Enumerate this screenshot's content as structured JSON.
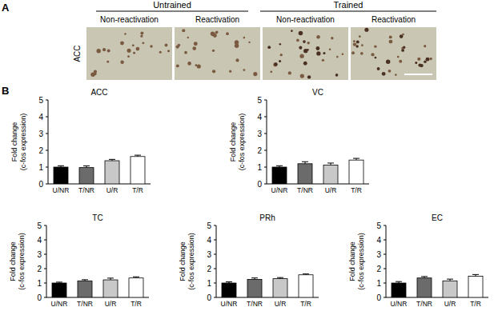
{
  "figure": {
    "panel_labels": [
      "A",
      "B"
    ],
    "groups": [
      "Untrained",
      "Trained"
    ],
    "conditions": [
      "Non-reactivation",
      "Reactivation",
      "Non-reactivation",
      "Reactivation"
    ],
    "row_label": "ACC"
  },
  "chart_data": [
    {
      "type": "bar",
      "title": "ACC",
      "y_label": "Fold change\n(c-fos expression)",
      "categories": [
        "U/NR",
        "T/NR",
        "U/R",
        "T/R"
      ],
      "values": [
        1.0,
        0.97,
        1.38,
        1.63
      ],
      "errors": [
        0.08,
        0.1,
        0.08,
        0.08
      ],
      "colors": [
        "#000000",
        "#6b6b6b",
        "#c8c8c8",
        "#ffffff"
      ],
      "ylim": [
        0,
        5
      ],
      "yticks": [
        0,
        1,
        2,
        3,
        4,
        5
      ]
    },
    {
      "type": "bar",
      "title": "VC",
      "y_label": "Fold change\n(c-fos expression)",
      "categories": [
        "U/NR",
        "T/NR",
        "U/R",
        "T/R"
      ],
      "values": [
        1.0,
        1.2,
        1.12,
        1.42
      ],
      "errors": [
        0.08,
        0.12,
        0.12,
        0.1
      ],
      "colors": [
        "#000000",
        "#6b6b6b",
        "#c8c8c8",
        "#ffffff"
      ],
      "ylim": [
        0,
        5
      ],
      "yticks": [
        0,
        1,
        2,
        3,
        4,
        5
      ]
    },
    {
      "type": "bar",
      "title": "TC",
      "y_label": "Fold change\n(c-fos expression)",
      "categories": [
        "U/NR",
        "T/NR",
        "U/R",
        "T/R"
      ],
      "values": [
        1.0,
        1.15,
        1.22,
        1.35
      ],
      "errors": [
        0.06,
        0.08,
        0.12,
        0.08
      ],
      "colors": [
        "#000000",
        "#6b6b6b",
        "#c8c8c8",
        "#ffffff"
      ],
      "ylim": [
        0,
        5
      ],
      "yticks": [
        0,
        1,
        2,
        3,
        4,
        5
      ]
    },
    {
      "type": "bar",
      "title": "PRh",
      "y_label": "Fold change\n(c-fos expression)",
      "categories": [
        "U/NR",
        "T/NR",
        "U/R",
        "T/R"
      ],
      "values": [
        1.0,
        1.25,
        1.3,
        1.57
      ],
      "errors": [
        0.08,
        0.1,
        0.08,
        0.06
      ],
      "colors": [
        "#000000",
        "#6b6b6b",
        "#c8c8c8",
        "#ffffff"
      ],
      "ylim": [
        0,
        5
      ],
      "yticks": [
        0,
        1,
        2,
        3,
        4,
        5
      ]
    },
    {
      "type": "bar",
      "title": "EC",
      "y_label": "Fold change\n(c-fos expression)",
      "categories": [
        "U/NR",
        "T/NR",
        "U/R",
        "T/R"
      ],
      "values": [
        1.0,
        1.35,
        1.15,
        1.47
      ],
      "errors": [
        0.1,
        0.1,
        0.12,
        0.12
      ],
      "colors": [
        "#000000",
        "#6b6b6b",
        "#c8c8c8",
        "#ffffff"
      ],
      "ylim": [
        0,
        5
      ],
      "yticks": [
        0,
        1,
        2,
        3,
        4,
        5
      ]
    }
  ]
}
